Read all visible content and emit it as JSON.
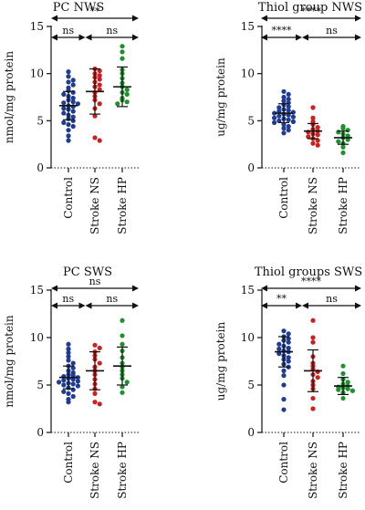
{
  "chart_data": [
    {
      "type": "scatter",
      "title": "PC NWS",
      "ylabel": "nmol/mg protein",
      "ylim": [
        0,
        15
      ],
      "yticks": [
        0,
        5,
        10,
        15
      ],
      "categories": [
        "Control",
        "Stroke NS",
        "Stroke HP"
      ],
      "series": [
        {
          "name": "Control",
          "color": "#1f3b93",
          "mean": 6.6,
          "sd": 1.5,
          "values": [
            10.2,
            9.7,
            9.3,
            9.1,
            8.8,
            8.5,
            8.2,
            8.0,
            7.8,
            7.6,
            7.4,
            7.2,
            7.0,
            6.9,
            6.8,
            6.6,
            6.5,
            6.3,
            6.2,
            6.0,
            5.8,
            5.6,
            5.4,
            5.2,
            5.0,
            4.8,
            4.6,
            4.4,
            4.0,
            3.4,
            2.9
          ]
        },
        {
          "name": "Stroke NS",
          "color": "#cc1f1f",
          "mean": 8.1,
          "sd": 2.4,
          "values": [
            10.5,
            10.3,
            10.0,
            9.8,
            9.6,
            9.4,
            9.1,
            8.8,
            8.6,
            8.3,
            8.0,
            7.6,
            7.2,
            6.8,
            6.3,
            5.5,
            3.2,
            2.9
          ]
        },
        {
          "name": "Stroke HP",
          "color": "#1f8f2f",
          "mean": 8.6,
          "sd": 2.1,
          "values": [
            12.9,
            12.3,
            11.6,
            10.4,
            10.0,
            9.5,
            9.0,
            8.6,
            8.3,
            8.0,
            7.8,
            7.4,
            7.2,
            7.0,
            6.8
          ]
        }
      ],
      "comparisons": [
        {
          "from": 0,
          "to": 2,
          "label": "**"
        },
        {
          "from": 0,
          "to": 1,
          "label": "ns"
        },
        {
          "from": 1,
          "to": 2,
          "label": "ns"
        }
      ]
    },
    {
      "type": "scatter",
      "title": "Thiol group NWS",
      "ylabel": "ug/mg protein",
      "ylim": [
        0,
        15
      ],
      "yticks": [
        0,
        5,
        10,
        15
      ],
      "categories": [
        "Control",
        "Stroke NS",
        "Stroke HP"
      ],
      "series": [
        {
          "name": "Control",
          "color": "#1f3b93",
          "mean": 5.8,
          "sd": 1.0,
          "values": [
            8.1,
            7.8,
            7.5,
            7.3,
            7.1,
            6.9,
            6.7,
            6.5,
            6.4,
            6.2,
            6.1,
            6.0,
            5.9,
            5.8,
            5.7,
            5.6,
            5.5,
            5.4,
            5.3,
            5.2,
            5.1,
            5.0,
            4.9,
            4.8,
            4.6,
            4.4,
            4.2,
            4.0,
            3.7
          ]
        },
        {
          "name": "Stroke NS",
          "color": "#cc1f1f",
          "mean": 3.9,
          "sd": 0.8,
          "values": [
            6.4,
            5.3,
            4.9,
            4.6,
            4.3,
            4.1,
            3.9,
            3.8,
            3.6,
            3.5,
            3.3,
            3.1,
            2.9,
            2.6,
            2.4
          ]
        },
        {
          "name": "Stroke HP",
          "color": "#1f8f2f",
          "mean": 3.2,
          "sd": 0.7,
          "values": [
            4.4,
            4.2,
            4.0,
            3.8,
            3.6,
            3.4,
            3.2,
            3.0,
            2.8,
            2.6,
            2.2,
            1.6
          ]
        }
      ],
      "comparisons": [
        {
          "from": 0,
          "to": 2,
          "label": "****"
        },
        {
          "from": 0,
          "to": 1,
          "label": "****"
        },
        {
          "from": 1,
          "to": 2,
          "label": "ns"
        }
      ]
    },
    {
      "type": "scatter",
      "title": "PC SWS",
      "ylabel": "nmol/mg protein",
      "ylim": [
        0,
        15
      ],
      "yticks": [
        0,
        5,
        10,
        15
      ],
      "categories": [
        "Control",
        "Stroke NS",
        "Stroke HP"
      ],
      "series": [
        {
          "name": "Control",
          "color": "#1f3b93",
          "mean": 5.8,
          "sd": 1.2,
          "values": [
            9.3,
            8.8,
            8.4,
            8.0,
            7.6,
            7.3,
            7.0,
            6.8,
            6.5,
            6.3,
            6.1,
            6.0,
            5.9,
            5.8,
            5.7,
            5.6,
            5.5,
            5.4,
            5.3,
            5.2,
            5.1,
            5.0,
            4.9,
            4.7,
            4.5,
            4.3,
            4.1,
            3.8,
            3.5,
            3.2
          ]
        },
        {
          "name": "Stroke NS",
          "color": "#cc1f1f",
          "mean": 6.5,
          "sd": 2.0,
          "values": [
            9.2,
            8.9,
            8.5,
            8.1,
            7.7,
            7.3,
            6.9,
            6.5,
            6.1,
            5.6,
            5.1,
            4.6,
            4.1,
            3.2,
            3.0
          ]
        },
        {
          "name": "Stroke HP",
          "color": "#1f8f2f",
          "mean": 7.0,
          "sd": 2.0,
          "values": [
            11.8,
            10.2,
            9.3,
            8.6,
            7.9,
            7.3,
            6.9,
            6.5,
            6.1,
            5.7,
            5.3,
            4.8,
            4.2
          ]
        }
      ],
      "comparisons": [
        {
          "from": 0,
          "to": 2,
          "label": "ns"
        },
        {
          "from": 0,
          "to": 1,
          "label": "ns"
        },
        {
          "from": 1,
          "to": 2,
          "label": "ns"
        }
      ]
    },
    {
      "type": "scatter",
      "title": "Thiol groups SWS",
      "ylabel": "ug/mg protein",
      "ylim": [
        0,
        15
      ],
      "yticks": [
        0,
        5,
        10,
        15
      ],
      "categories": [
        "Control",
        "Stroke NS",
        "Stroke HP"
      ],
      "series": [
        {
          "name": "Control",
          "color": "#1f3b93",
          "mean": 8.5,
          "sd": 1.6,
          "values": [
            10.7,
            10.4,
            10.1,
            9.9,
            9.7,
            9.5,
            9.3,
            9.1,
            8.9,
            8.8,
            8.6,
            8.5,
            8.3,
            8.1,
            7.9,
            7.7,
            7.5,
            7.2,
            6.9,
            6.5,
            6.0,
            5.0,
            3.5,
            2.4
          ]
        },
        {
          "name": "Stroke NS",
          "color": "#cc1f1f",
          "mean": 6.5,
          "sd": 2.2,
          "values": [
            11.8,
            10.0,
            9.5,
            8.0,
            7.3,
            7.0,
            6.7,
            6.4,
            6.1,
            5.8,
            5.4,
            5.0,
            4.6,
            3.6,
            2.5
          ]
        },
        {
          "name": "Stroke HP",
          "color": "#1f8f2f",
          "mean": 4.9,
          "sd": 0.9,
          "values": [
            7.0,
            6.2,
            5.6,
            5.3,
            5.1,
            4.9,
            4.8,
            4.7,
            4.6,
            4.5,
            4.4,
            4.2,
            3.6
          ]
        }
      ],
      "comparisons": [
        {
          "from": 0,
          "to": 2,
          "label": "****"
        },
        {
          "from": 0,
          "to": 1,
          "label": "**"
        },
        {
          "from": 1,
          "to": 2,
          "label": "ns"
        }
      ]
    }
  ]
}
